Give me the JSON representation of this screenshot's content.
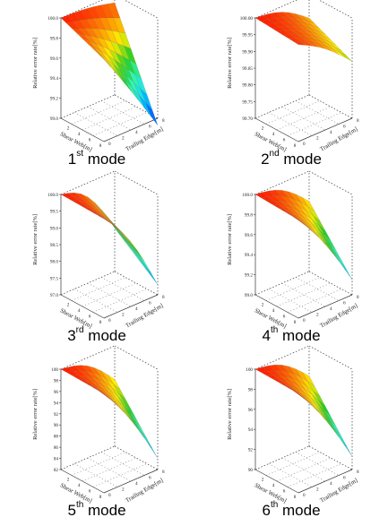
{
  "chart_data": [
    {
      "type": "surface3d",
      "ylabel": "Relative error rate[%]",
      "xlabel": "Shear Web[m]",
      "zlabel": "Trailing Edge[m]",
      "mode_num": "1",
      "mode_sup": "st",
      "mode_word": "mode",
      "zlim": [
        99.0,
        100.0
      ],
      "zticks": [
        "99.0",
        "99.2",
        "99.4",
        "99.6",
        "99.8",
        "100.0"
      ],
      "xticks": [
        "2",
        "4",
        "6",
        "8"
      ],
      "tticks": [
        "0",
        "2",
        "4",
        "6",
        "8"
      ],
      "corners": {
        "shear0_te0": 100.0,
        "shear8_te0": 99.82,
        "shear0_te8": 99.92,
        "shear8_te8": 98.93
      }
    },
    {
      "type": "surface3d",
      "ylabel": "Relative error rate[%]",
      "xlabel": "Shear Web[m]",
      "zlabel": "Trailing Edge[m]",
      "mode_num": "2",
      "mode_sup": "nd",
      "mode_word": "mode",
      "zlim": [
        99.7,
        100.0
      ],
      "zticks": [
        "99.70",
        "99.75",
        "99.80",
        "99.85",
        "99.90",
        "99.95",
        "100.00"
      ],
      "xticks": [
        "2",
        "4",
        "6",
        "8"
      ],
      "tticks": [
        "0",
        "2",
        "4",
        "6",
        "8"
      ],
      "corners": {
        "shear0_te0": 100.0,
        "shear8_te0": 99.99,
        "shear0_te8": 99.93,
        "shear8_te8": 99.87
      }
    },
    {
      "type": "surface3d",
      "ylabel": "Relative error rate[%]",
      "xlabel": "Shear Web[m]",
      "zlabel": "Trailing Edge[m]",
      "mode_num": "3",
      "mode_sup": "rd",
      "mode_word": "mode",
      "zlim": [
        97.0,
        100.0
      ],
      "zticks": [
        "97.0",
        "97.5",
        "98.0",
        "98.5",
        "99.0",
        "99.5",
        "100.0"
      ],
      "xticks": [
        "2",
        "4",
        "6",
        "8"
      ],
      "tticks": [
        "0",
        "2",
        "4",
        "6",
        "8"
      ],
      "corners": {
        "shear0_te0": 100.0,
        "shear8_te0": 99.97,
        "shear0_te8": 98.3,
        "shear8_te8": 97.3
      }
    },
    {
      "type": "surface3d",
      "ylabel": "Relative error rate[%]",
      "xlabel": "Shear Web[m]",
      "zlabel": "Trailing Edge[m]",
      "mode_num": "4",
      "mode_sup": "th",
      "mode_word": "mode",
      "zlim": [
        99.0,
        100.0
      ],
      "zticks": [
        "99.0",
        "99.2",
        "99.4",
        "99.6",
        "99.8",
        "100.0"
      ],
      "xticks": [
        "2",
        "4",
        "6",
        "8"
      ],
      "tticks": [
        "0",
        "2",
        "4",
        "6",
        "8"
      ],
      "corners": {
        "shear0_te0": 100.0,
        "shear8_te0": 99.98,
        "shear0_te8": 99.7,
        "shear8_te8": 99.15
      }
    },
    {
      "type": "surface3d",
      "ylabel": "Relative error rate[%]",
      "xlabel": "Shear Web[m]",
      "zlabel": "Trailing Edge[m]",
      "mode_num": "5",
      "mode_sup": "th",
      "mode_word": "mode",
      "zlim": [
        82,
        100
      ],
      "zticks": [
        "82",
        "84",
        "86",
        "88",
        "90",
        "92",
        "94",
        "96",
        "98",
        "100"
      ],
      "xticks": [
        "2",
        "4",
        "6",
        "8"
      ],
      "tticks": [
        "0",
        "2",
        "4",
        "6",
        "8"
      ],
      "corners": {
        "shear0_te0": 100.0,
        "shear8_te0": 99.8,
        "shear0_te8": 94.0,
        "shear8_te8": 84.0
      }
    },
    {
      "type": "surface3d",
      "ylabel": "Relative error rate[%]",
      "xlabel": "Shear Web[m]",
      "zlabel": "Trailing Edge[m]",
      "mode_num": "6",
      "mode_sup": "th",
      "mode_word": "mode",
      "zlim": [
        90,
        100
      ],
      "zticks": [
        "90",
        "92",
        "94",
        "96",
        "98",
        "100"
      ],
      "xticks": [
        "2",
        "4",
        "6",
        "8"
      ],
      "tticks": [
        "0",
        "2",
        "4",
        "6",
        "8"
      ],
      "corners": {
        "shear0_te0": 100.0,
        "shear8_te0": 99.9,
        "shear0_te8": 97.0,
        "shear8_te8": 91.3
      }
    }
  ],
  "colormap": [
    "#0050ff",
    "#00b8ff",
    "#33ffcc",
    "#22cc22",
    "#ffee00",
    "#ff8800",
    "#ff1a00"
  ]
}
